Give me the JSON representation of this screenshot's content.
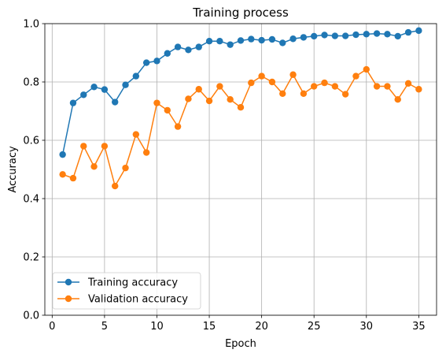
{
  "chart_data": {
    "type": "line",
    "title": "Training process",
    "xlabel": "Epoch",
    "ylabel": "Accuracy",
    "xlim": [
      -0.7,
      36.7
    ],
    "ylim": [
      0.0,
      1.0
    ],
    "xticks": [
      0,
      5,
      10,
      15,
      20,
      25,
      30,
      35
    ],
    "yticks": [
      0.0,
      0.2,
      0.4,
      0.6,
      0.8,
      1.0
    ],
    "xtick_labels": [
      "0",
      "5",
      "10",
      "15",
      "20",
      "25",
      "30",
      "35"
    ],
    "ytick_labels": [
      "0.0",
      "0.2",
      "0.4",
      "0.6",
      "0.8",
      "1.0"
    ],
    "grid": true,
    "legend_position": "lower-left",
    "x": [
      1,
      2,
      3,
      4,
      5,
      6,
      7,
      8,
      9,
      10,
      11,
      12,
      13,
      14,
      15,
      16,
      17,
      18,
      19,
      20,
      21,
      22,
      23,
      24,
      25,
      26,
      27,
      28,
      29,
      30,
      31,
      32,
      33,
      34,
      35
    ],
    "series": [
      {
        "name": "Training accuracy",
        "color": "#1f77b4",
        "values": [
          0.551,
          0.728,
          0.756,
          0.783,
          0.774,
          0.731,
          0.79,
          0.82,
          0.866,
          0.872,
          0.898,
          0.92,
          0.91,
          0.92,
          0.94,
          0.94,
          0.928,
          0.942,
          0.947,
          0.943,
          0.946,
          0.934,
          0.948,
          0.953,
          0.957,
          0.961,
          0.958,
          0.958,
          0.962,
          0.964,
          0.966,
          0.964,
          0.957,
          0.97,
          0.976
        ]
      },
      {
        "name": "Validation accuracy",
        "color": "#ff7f0e",
        "values": [
          0.483,
          0.47,
          0.58,
          0.51,
          0.58,
          0.443,
          0.505,
          0.62,
          0.558,
          0.728,
          0.703,
          0.647,
          0.742,
          0.775,
          0.735,
          0.785,
          0.74,
          0.713,
          0.797,
          0.82,
          0.8,
          0.76,
          0.825,
          0.76,
          0.785,
          0.797,
          0.785,
          0.758,
          0.82,
          0.843,
          0.785,
          0.785,
          0.74,
          0.795,
          0.775
        ]
      }
    ]
  }
}
